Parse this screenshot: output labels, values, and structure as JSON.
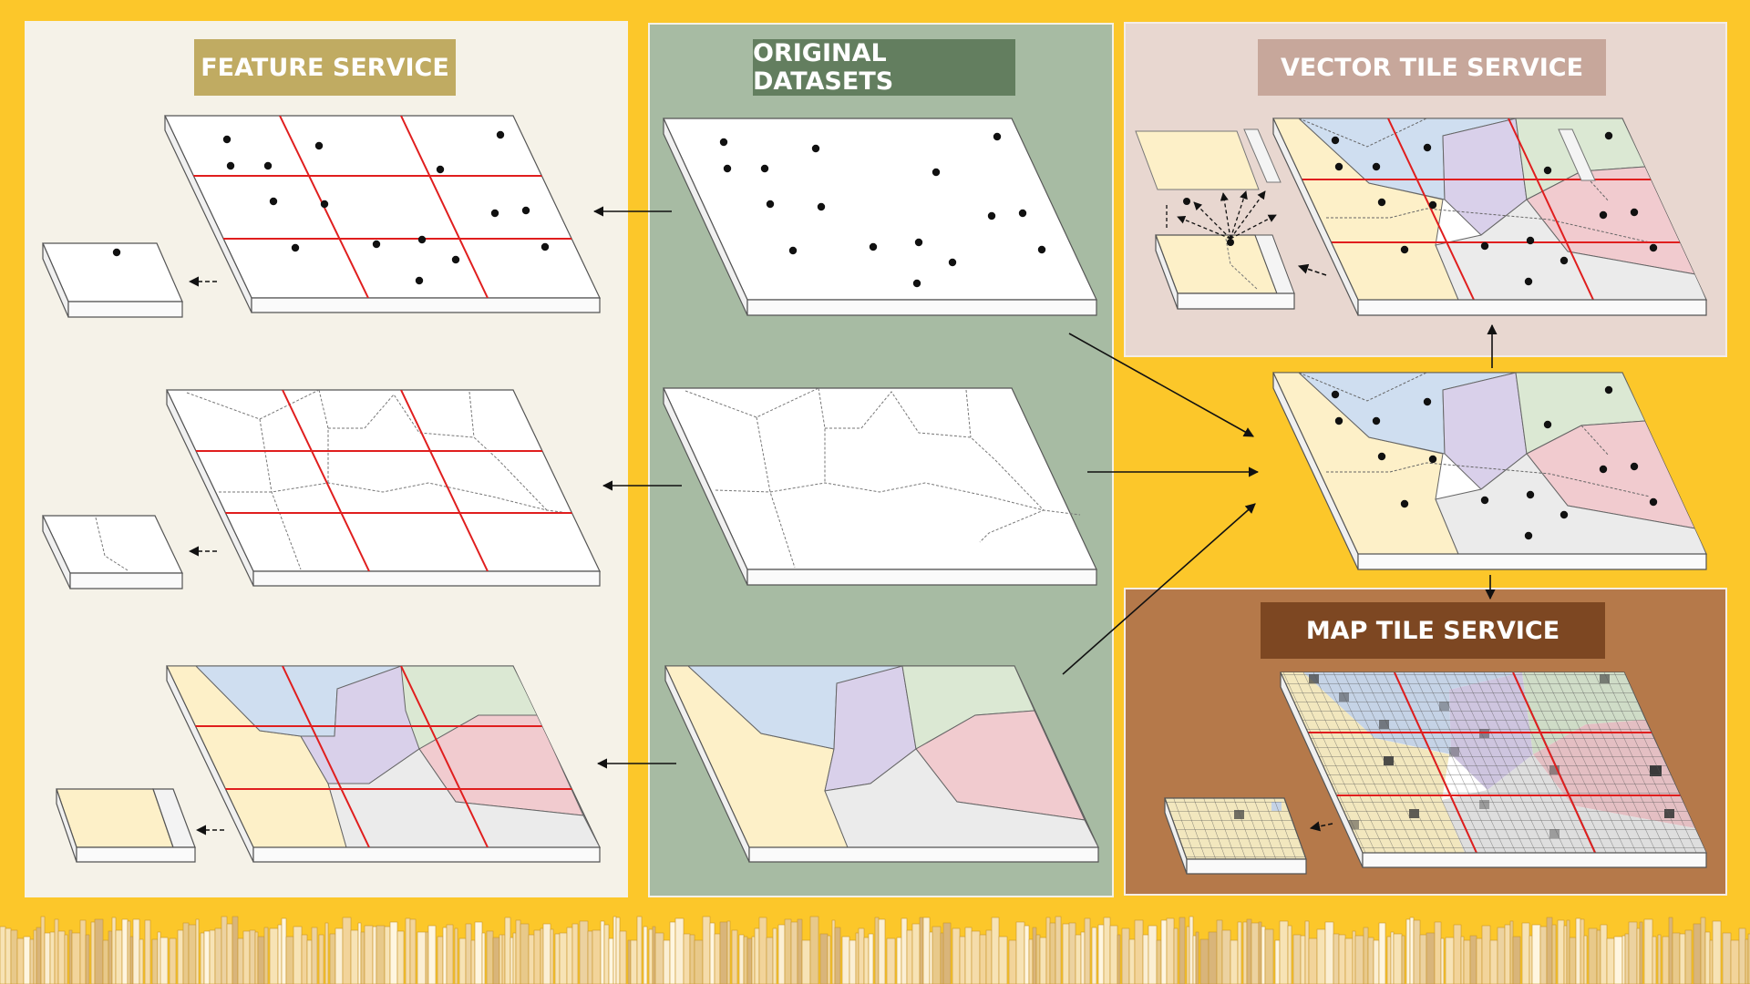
{
  "titles": {
    "feature_service": "FEATURE SERVICE",
    "original_datasets": "ORIGINAL DATASETS",
    "vector_tile_service": "VECTOR TILE SERVICE",
    "map_tile_service": "MAP TILE SERVICE"
  },
  "colors": {
    "background": "#fcc72a",
    "feature_panel": "#f5f2e8",
    "original_panel": "#a7bba3",
    "vector_panel": "#e8d7d0",
    "map_panel": "#b5794a",
    "tile_grid_line": "#e01e1e",
    "region_yellow": "#fdf0c8",
    "region_blue": "#cfdef0",
    "region_purple": "#d9d0ea",
    "region_green": "#dbe8d3",
    "region_pink": "#f1cbcf",
    "region_gray": "#ebebeb"
  }
}
